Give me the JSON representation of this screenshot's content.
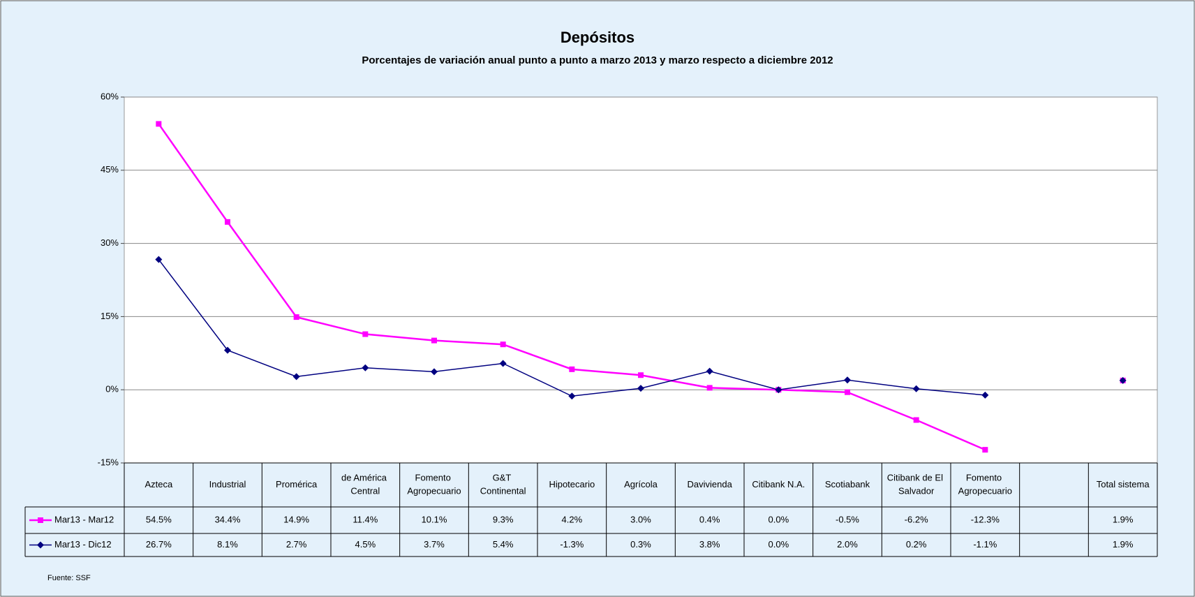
{
  "chart_data": {
    "type": "line",
    "title": "Depósitos",
    "subtitle": "Porcentajes de variación anual punto a punto a marzo 2013 y marzo respecto a diciembre 2012",
    "categories": [
      "Azteca",
      "Industrial",
      "Promérica",
      "de América Central",
      "Fomento Agropecuario",
      "G&T Continental",
      "Hipotecario",
      "Agrícola",
      "Davivienda",
      "Citibank N.A.",
      "Scotiabank",
      "Citibank de El Salvador",
      "Fomento Agropecuario",
      null,
      "Total sistema"
    ],
    "series": [
      {
        "name": "Mar13 - Mar12",
        "color": "#ff00ff",
        "marker": "square",
        "values": [
          54.5,
          34.4,
          14.9,
          11.4,
          10.1,
          9.3,
          4.2,
          3.0,
          0.4,
          0.0,
          -0.5,
          -6.2,
          -12.3,
          null,
          1.9
        ],
        "value_labels": [
          "54.5%",
          "34.4%",
          "14.9%",
          "11.4%",
          "10.1%",
          "9.3%",
          "4.2%",
          "3.0%",
          "0.4%",
          "0.0%",
          "-0.5%",
          "-6.2%",
          "-12.3%",
          null,
          "1.9%"
        ]
      },
      {
        "name": "Mar13 - Dic12",
        "color": "#000080",
        "marker": "diamond",
        "values": [
          26.7,
          8.1,
          2.7,
          4.5,
          3.7,
          5.4,
          -1.3,
          0.3,
          3.8,
          0.0,
          2.0,
          0.2,
          -1.1,
          null,
          1.9
        ],
        "value_labels": [
          "26.7%",
          "8.1%",
          "2.7%",
          "4.5%",
          "3.7%",
          "5.4%",
          "-1.3%",
          "0.3%",
          "3.8%",
          "0.0%",
          "2.0%",
          "0.2%",
          "-1.1%",
          null,
          "1.9%"
        ]
      }
    ],
    "ylim": [
      -15,
      60
    ],
    "yticks": [
      {
        "value": -15,
        "label": "-15%"
      },
      {
        "value": 0,
        "label": "0%"
      },
      {
        "value": 15,
        "label": "15%"
      },
      {
        "value": 30,
        "label": "30%"
      },
      {
        "value": 45,
        "label": "45%"
      },
      {
        "value": 60,
        "label": "60%"
      }
    ],
    "grid": true,
    "source": "Fuente: SSF"
  }
}
